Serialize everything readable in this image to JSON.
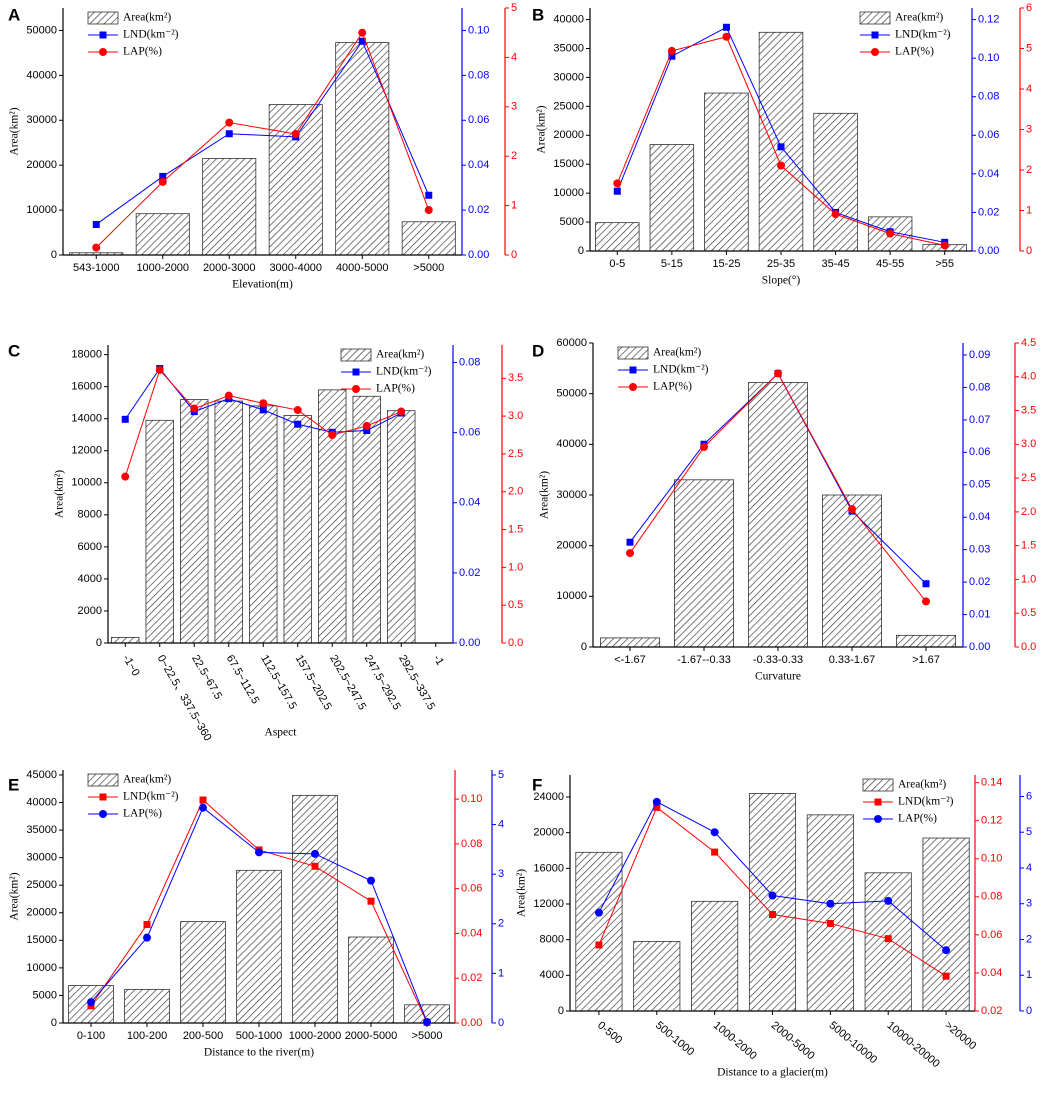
{
  "chart_data": [
    {
      "panel": "A",
      "type": "bar",
      "xlabel": "Elevation(m)",
      "ylabel": "Area(km²)",
      "categories": [
        "543-1000",
        "1000-2000",
        "2000-3000",
        "3000-4000",
        "4000-5000",
        ">5000"
      ],
      "series": [
        {
          "name": "Area(km²)",
          "type": "bar",
          "color": "#333333",
          "values": [
            500,
            9200,
            21500,
            33500,
            47300,
            7400
          ]
        },
        {
          "name": "LND(km⁻²)",
          "type": "line",
          "marker": "square",
          "color": "#0000ff",
          "axis": "y2",
          "values": [
            0.0136,
            0.035,
            0.054,
            0.0526,
            0.0952,
            0.0266
          ]
        },
        {
          "name": "LAP(%)",
          "type": "line",
          "marker": "circle",
          "color": "#ff0000",
          "axis": "y3",
          "values": [
            0.15,
            1.48,
            2.68,
            2.45,
            4.5,
            0.91
          ]
        }
      ],
      "ylim": [
        0,
        55000
      ],
      "yticks": [
        0,
        10000,
        20000,
        30000,
        40000,
        50000
      ],
      "y2lim": [
        0,
        0.11
      ],
      "y2ticks": [
        {
          "value": 0,
          "label": "0.00"
        },
        {
          "value": 0.02,
          "label": "0.02"
        },
        {
          "value": 0.04,
          "label": "0.04"
        },
        {
          "value": 0.06,
          "label": "0.06"
        },
        {
          "value": 0.08,
          "label": "0.08"
        },
        {
          "value": 0.1,
          "label": "0.10"
        }
      ],
      "y3lim": [
        0,
        5
      ],
      "y3ticks": [
        0,
        1,
        2,
        3,
        4,
        5
      ],
      "legend": "upper left"
    },
    {
      "panel": "B",
      "type": "bar",
      "xlabel": "Slope(°)",
      "ylabel": "Area(km²)",
      "categories": [
        "0-5",
        "5-15",
        "15-25",
        "25-35",
        "35-45",
        "45-55",
        ">55"
      ],
      "series": [
        {
          "name": "Area(km²)",
          "type": "bar",
          "color": "#333333",
          "values": [
            4900,
            18400,
            27300,
            37800,
            23800,
            5900,
            1100
          ]
        },
        {
          "name": "LND(km⁻²)",
          "type": "line",
          "marker": "square",
          "color": "#0000ff",
          "axis": "y2",
          "values": [
            0.031,
            0.101,
            0.116,
            0.054,
            0.02,
            0.01,
            0.0045
          ]
        },
        {
          "name": "LAP(%)",
          "type": "line",
          "marker": "circle",
          "color": "#ff0000",
          "axis": "y3",
          "values": [
            1.67,
            4.94,
            5.29,
            2.11,
            0.91,
            0.43,
            0.14
          ]
        }
      ],
      "ylim": [
        0,
        42000
      ],
      "yticks": [
        0,
        5000,
        10000,
        15000,
        20000,
        25000,
        30000,
        35000,
        40000
      ],
      "y2lim": [
        0,
        0.126
      ],
      "y2ticks": [
        {
          "value": 0,
          "label": "0.00"
        },
        {
          "value": 0.02,
          "label": "0.02"
        },
        {
          "value": 0.04,
          "label": "0.04"
        },
        {
          "value": 0.06,
          "label": "0.06"
        },
        {
          "value": 0.08,
          "label": "0.08"
        },
        {
          "value": 0.1,
          "label": "0.10"
        },
        {
          "value": 0.12,
          "label": "0.12"
        }
      ],
      "y3lim": [
        0,
        6
      ],
      "y3ticks": [
        0,
        1,
        2,
        3,
        4,
        5,
        6
      ],
      "legend": "upper right"
    },
    {
      "panel": "C",
      "type": "bar",
      "xlabel": "Aspect",
      "ylabel": "Area(km²)",
      "categories": [
        "-1~0",
        "0~22.5、337.5~360",
        "22.5~67.5",
        "67.5~112.5",
        "112.5~157.5",
        "157.5~202.5",
        "202.5~247.5",
        "247.5~292.5",
        "292.5~337.5",
        "-1"
      ],
      "series": [
        {
          "name": "Area(km²)",
          "type": "bar",
          "color": "#333333",
          "values": [
            350,
            13900,
            15200,
            15100,
            14800,
            14200,
            15800,
            15400,
            14500,
            null
          ]
        },
        {
          "name": "LND(km⁻²)",
          "type": "line",
          "marker": "square",
          "color": "#0000ff",
          "axis": "y2",
          "values": [
            0.0638,
            0.0783,
            0.066,
            0.0697,
            0.0665,
            0.0624,
            0.0601,
            0.0606,
            0.0656,
            null
          ]
        },
        {
          "name": "LAP(%)",
          "type": "line",
          "marker": "circle",
          "color": "#ff0000",
          "axis": "y3",
          "values": [
            2.2,
            3.61,
            3.1,
            3.27,
            3.17,
            3.08,
            2.75,
            2.87,
            3.06,
            null
          ]
        }
      ],
      "ylim": [
        0,
        18600
      ],
      "yticks": [
        0,
        2000,
        4000,
        6000,
        8000,
        10000,
        12000,
        14000,
        16000,
        18000
      ],
      "y2lim": [
        0,
        0.085
      ],
      "y2ticks": [
        {
          "value": 0,
          "label": "0.00"
        },
        {
          "value": 0.02,
          "label": "0.02"
        },
        {
          "value": 0.04,
          "label": "0.04"
        },
        {
          "value": 0.06,
          "label": "0.06"
        },
        {
          "value": 0.08,
          "label": "0.08"
        }
      ],
      "y3lim": [
        0,
        3.94
      ],
      "y3ticks": [
        {
          "value": 0,
          "label": "0.0"
        },
        {
          "value": 0.5,
          "label": "0.5"
        },
        {
          "value": 1,
          "label": "1.0"
        },
        {
          "value": 1.5,
          "label": "1.5"
        },
        {
          "value": 2,
          "label": "2.0"
        },
        {
          "value": 2.5,
          "label": "2.5"
        },
        {
          "value": 3,
          "label": "3.0"
        },
        {
          "value": 3.5,
          "label": "3.5"
        }
      ],
      "legend": "upper right"
    },
    {
      "panel": "D",
      "type": "bar",
      "xlabel": "Curvature",
      "ylabel": "Area(km²)",
      "categories": [
        "<-1.67",
        "-1.67--0.33",
        "-0.33-0.33",
        "0.33-1.67",
        ">1.67"
      ],
      "series": [
        {
          "name": "Area(km²)",
          "type": "bar",
          "color": "#333333",
          "values": [
            1800,
            33000,
            52200,
            30000,
            2300
          ]
        },
        {
          "name": "LND(km⁻²)",
          "type": "line",
          "marker": "square",
          "color": "#0000ff",
          "axis": "y2",
          "values": [
            0.0323,
            0.0625,
            0.0843,
            0.0419,
            0.0195
          ]
        },
        {
          "name": "LAP(%)",
          "type": "line",
          "marker": "circle",
          "color": "#ff0000",
          "axis": "y3",
          "values": [
            1.39,
            2.96,
            4.05,
            2.04,
            0.675
          ]
        }
      ],
      "ylim": [
        0,
        60000
      ],
      "yticks": [
        0,
        10000,
        20000,
        30000,
        40000,
        50000,
        60000
      ],
      "y2lim": [
        0,
        0.0937
      ],
      "y2ticks": [
        {
          "value": 0,
          "label": "0.00"
        },
        {
          "value": 0.01,
          "label": "0.01"
        },
        {
          "value": 0.02,
          "label": "0.02"
        },
        {
          "value": 0.03,
          "label": "0.03"
        },
        {
          "value": 0.04,
          "label": "0.04"
        },
        {
          "value": 0.05,
          "label": "0.05"
        },
        {
          "value": 0.06,
          "label": "0.06"
        },
        {
          "value": 0.07,
          "label": "0.07"
        },
        {
          "value": 0.08,
          "label": "0.08"
        },
        {
          "value": 0.09,
          "label": "0.09"
        }
      ],
      "y3lim": [
        0,
        4.5
      ],
      "y3ticks": [
        {
          "value": 0,
          "label": "0.0"
        },
        {
          "value": 0.5,
          "label": "0.5"
        },
        {
          "value": 1,
          "label": "1.0"
        },
        {
          "value": 1.5,
          "label": "1.5"
        },
        {
          "value": 2,
          "label": "2.0"
        },
        {
          "value": 2.5,
          "label": "2.5"
        },
        {
          "value": 3,
          "label": "3.0"
        },
        {
          "value": 3.5,
          "label": "3.5"
        },
        {
          "value": 4,
          "label": "4.0"
        },
        {
          "value": 4.5,
          "label": "4.5"
        }
      ],
      "legend": "upper left"
    },
    {
      "panel": "E",
      "type": "bar",
      "xlabel": "Distance to the river(m)",
      "ylabel": "Area(km²)",
      "categories": [
        "0-100",
        "100-200",
        "200-500",
        "500-1000",
        "1000-2000",
        "2000-5000",
        ">5000"
      ],
      "series": [
        {
          "name": "Area(km²)",
          "type": "bar",
          "color": "#333333",
          "values": [
            6800,
            6100,
            18400,
            27700,
            41300,
            15600,
            3300
          ]
        },
        {
          "name": "LND(km⁻²)",
          "type": "line",
          "marker": "square",
          "color": "#ff0000",
          "axis": "y2",
          "values": [
            0.0077,
            0.044,
            0.0996,
            0.0773,
            0.07,
            0.0544,
            0.0003
          ]
        },
        {
          "name": "LAP(%)",
          "type": "line",
          "marker": "circle",
          "color": "#0000ff",
          "axis": "y3",
          "values": [
            0.42,
            1.72,
            4.34,
            3.44,
            3.41,
            2.87,
            0.02
          ]
        }
      ],
      "ylim": [
        0,
        45900
      ],
      "yticks": [
        0,
        5000,
        10000,
        15000,
        20000,
        25000,
        30000,
        35000,
        40000,
        45000
      ],
      "y2lim": [
        0,
        0.113
      ],
      "y2ticks": [
        {
          "value": 0,
          "label": "0.00"
        },
        {
          "value": 0.02,
          "label": "0.02"
        },
        {
          "value": 0.04,
          "label": "0.04"
        },
        {
          "value": 0.06,
          "label": "0.06"
        },
        {
          "value": 0.08,
          "label": "0.08"
        },
        {
          "value": 0.1,
          "label": "0.10"
        }
      ],
      "y3lim": [
        0,
        5.1
      ],
      "y3ticks": [
        0,
        1,
        2,
        3,
        4,
        5
      ],
      "legend": "upper left"
    },
    {
      "panel": "F",
      "type": "bar",
      "xlabel": "Distance to a glacier(m)",
      "ylabel": "Area(km²)",
      "categories": [
        "0-500",
        "500-1000",
        "1000-2000",
        "2000-5000",
        "5000-10000",
        "10000-20000",
        ">20000"
      ],
      "series": [
        {
          "name": "Area(km²)",
          "type": "bar",
          "color": "#333333",
          "values": [
            17800,
            7800,
            12300,
            24400,
            22000,
            15500,
            19400
          ]
        },
        {
          "name": "LND(km⁻²)",
          "type": "line",
          "marker": "square",
          "color": "#ff0000",
          "axis": "y2",
          "values": [
            0.0547,
            0.127,
            0.1035,
            0.0707,
            0.066,
            0.058,
            0.0383
          ]
        },
        {
          "name": "LAP(%)",
          "type": "line",
          "marker": "circle",
          "color": "#0000ff",
          "axis": "y3",
          "values": [
            2.75,
            5.85,
            5.0,
            3.23,
            3.0,
            3.08,
            1.7
          ]
        }
      ],
      "ylim": [
        0,
        26470
      ],
      "yticks": [
        0,
        4000,
        8000,
        12000,
        16000,
        20000,
        24000
      ],
      "y2lim": [
        0.02,
        0.144
      ],
      "y2ticks": [
        {
          "value": 0.02,
          "label": "0.02"
        },
        {
          "value": 0.04,
          "label": "0.04"
        },
        {
          "value": 0.06,
          "label": "0.06"
        },
        {
          "value": 0.08,
          "label": "0.08"
        },
        {
          "value": 0.1,
          "label": "0.10"
        },
        {
          "value": 0.12,
          "label": "0.12"
        },
        {
          "value": 0.14,
          "label": "0.14"
        }
      ],
      "y3lim": [
        0,
        6.6
      ],
      "y3ticks": [
        0,
        1,
        2,
        3,
        4,
        5,
        6
      ],
      "legend": "upper right"
    }
  ]
}
